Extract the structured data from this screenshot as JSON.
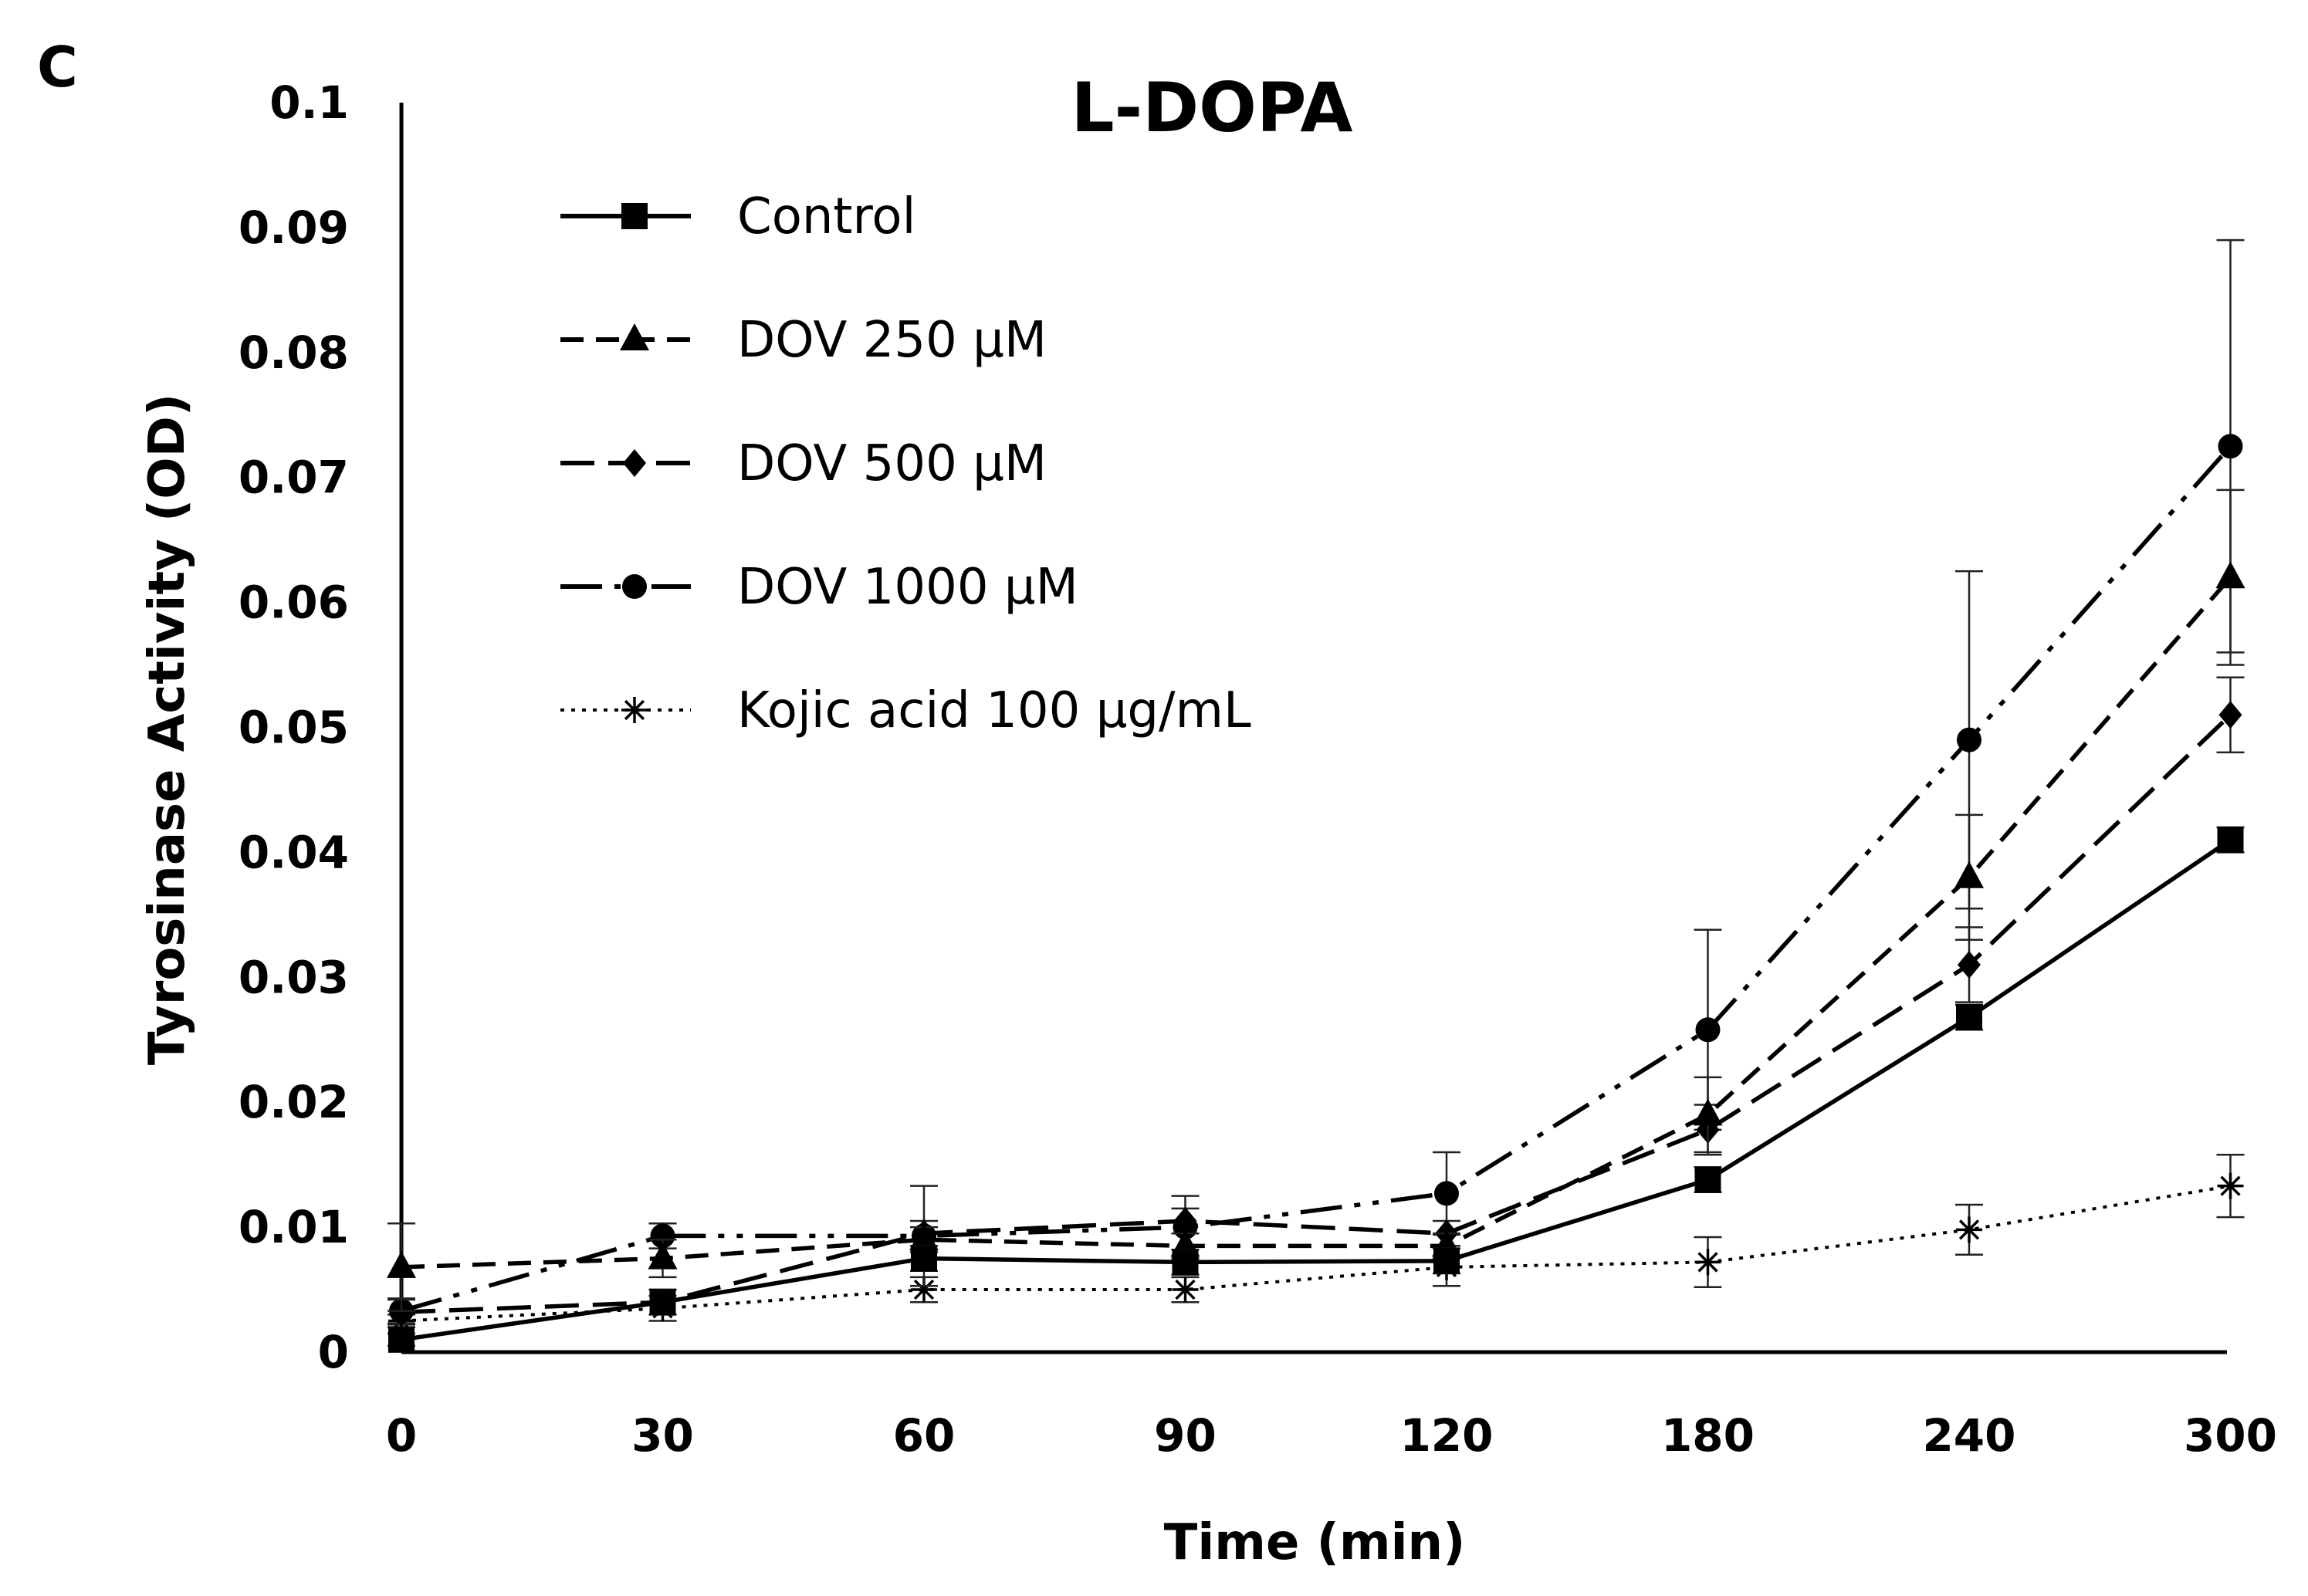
{
  "panel_label": "C",
  "chart_data": {
    "type": "line",
    "title": "L-DOPA",
    "xlabel": "Time (min)",
    "ylabel": "Tyrosinase Activity (OD)",
    "categories": [
      "0",
      "30",
      "60",
      "90",
      "120",
      "180",
      "240",
      "300"
    ],
    "ylim": [
      0,
      0.1
    ],
    "yticks": [
      "0",
      "0.01",
      "0.02",
      "0.03",
      "0.04",
      "0.05",
      "0.06",
      "0.07",
      "0.08",
      "0.09",
      "0.1"
    ],
    "grid": false,
    "legend_position": "top-left",
    "series": [
      {
        "name": "Control",
        "line": "solid",
        "marker": "square",
        "values": [
          0.001,
          0.004,
          0.0075,
          0.0072,
          0.0073,
          0.0138,
          0.0268,
          0.041
        ],
        "errors": [
          0.0005,
          0.001,
          0.001,
          0.001,
          0.001,
          0.001,
          0.001,
          0.001
        ]
      },
      {
        "name": "DOV 250 μM",
        "line": "dashed",
        "marker": "triangle",
        "values": [
          0.0068,
          0.0075,
          0.009,
          0.0085,
          0.0085,
          0.019,
          0.038,
          0.062
        ],
        "errors": [
          0.0035,
          0.0015,
          0.001,
          0.001,
          0.001,
          0.003,
          0.005,
          0.007
        ]
      },
      {
        "name": "DOV 500 μM",
        "line": "long-dash",
        "marker": "diamond",
        "values": [
          0.0032,
          0.004,
          0.0095,
          0.0105,
          0.0095,
          0.0178,
          0.031,
          0.051
        ],
        "errors": [
          0.001,
          0.001,
          0.001,
          0.001,
          0.001,
          0.002,
          0.003,
          0.003
        ]
      },
      {
        "name": "DOV 1000 μM",
        "line": "dash-dot-dot",
        "marker": "circle",
        "values": [
          0.0033,
          0.0093,
          0.0093,
          0.01,
          0.0127,
          0.0258,
          0.049,
          0.0725
        ],
        "errors": [
          0.001,
          0.001,
          0.004,
          0.0025,
          0.0033,
          0.008,
          0.0135,
          0.0165
        ]
      },
      {
        "name": "Kojic acid 100 μg/mL",
        "line": "dotted",
        "marker": "asterisk",
        "values": [
          0.0025,
          0.0035,
          0.005,
          0.005,
          0.0068,
          0.0072,
          0.0098,
          0.0133
        ],
        "errors": [
          0.0005,
          0.001,
          0.001,
          0.001,
          0.0015,
          0.002,
          0.002,
          0.0025
        ]
      }
    ]
  }
}
